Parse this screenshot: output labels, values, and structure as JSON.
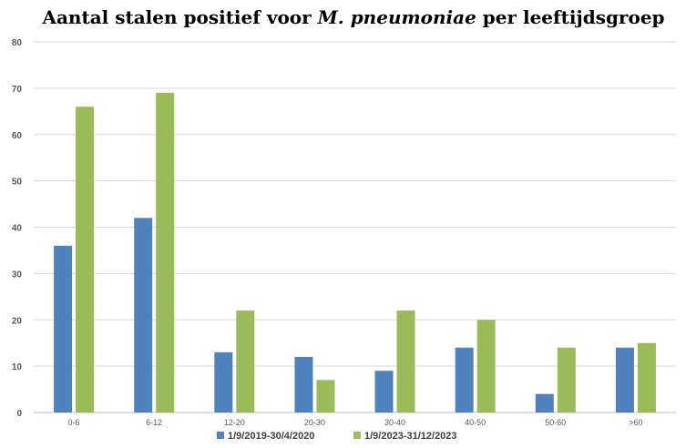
{
  "chart_data": {
    "type": "bar",
    "title": {
      "prefix": "Aantal stalen positief voor ",
      "italic": "M. pneumoniae",
      "suffix": " per leeftijdsgroep"
    },
    "categories": [
      "0-6",
      "6-12",
      "12-20",
      "20-30",
      "30-40",
      "40-50",
      "50-60",
      ">60"
    ],
    "series": [
      {
        "name": "1/9/2019-30/4/2020",
        "color": "#4f81bd",
        "values": [
          36,
          42,
          13,
          12,
          9,
          14,
          4,
          14
        ]
      },
      {
        "name": "1/9/2023-31/12/2023",
        "color": "#9bbb59",
        "values": [
          66,
          69,
          22,
          7,
          22,
          20,
          14,
          15
        ]
      }
    ],
    "ylim": [
      0,
      80
    ],
    "yticks": [
      0,
      10,
      20,
      30,
      40,
      50,
      60,
      70,
      80
    ],
    "grid": true,
    "legend_position": "bottom",
    "xlabel": "",
    "ylabel": ""
  }
}
